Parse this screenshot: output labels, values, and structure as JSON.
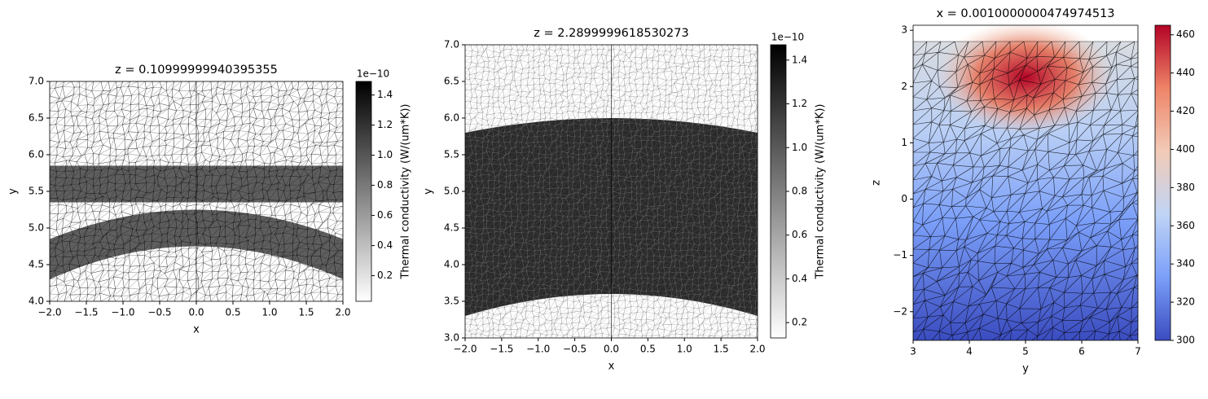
{
  "chart_data": [
    {
      "type": "mesh",
      "title": "z = 0.10999999940395355",
      "xlabel": "x",
      "ylabel": "y",
      "xlim": [
        -2,
        2
      ],
      "ylim": [
        4,
        7
      ],
      "xticks": [
        {
          "value": -2,
          "label": "−2.0"
        },
        {
          "value": -1.5,
          "label": "−1.5"
        },
        {
          "value": -1,
          "label": "−1.0"
        },
        {
          "value": -0.5,
          "label": "−0.5"
        },
        {
          "value": 0,
          "label": "0.0"
        },
        0.5,
        {
          "value": 1,
          "label": "1.0"
        },
        1.5,
        {
          "value": 2,
          "label": "2.0"
        }
      ],
      "yticks": [
        {
          "value": 4,
          "label": "4.0"
        },
        4.5,
        {
          "value": 5,
          "label": "5.0"
        },
        5.5,
        {
          "value": 6,
          "label": "6.0"
        },
        6.5,
        {
          "value": 7,
          "label": "7.0"
        }
      ],
      "colorbar": {
        "label": "Thermal conductivity (W/(um*K))",
        "offset_text": "1e−10",
        "lim": [
          0.03,
          1.49
        ],
        "ticks": [
          0.2,
          0.4,
          0.6,
          0.8,
          {
            "value": 1,
            "label": "1.0"
          },
          1.2,
          1.4
        ],
        "colors": [
          "#ffffff",
          "#000000"
        ]
      }
    },
    {
      "type": "mesh",
      "title": "z = 2.2899999618530273",
      "xlabel": "x",
      "ylabel": "y",
      "xlim": [
        -2,
        2
      ],
      "ylim": [
        3,
        7
      ],
      "xticks": [
        {
          "value": -2,
          "label": "−2.0"
        },
        {
          "value": -1.5,
          "label": "−1.5"
        },
        {
          "value": -1,
          "label": "−1.0"
        },
        {
          "value": -0.5,
          "label": "−0.5"
        },
        {
          "value": 0,
          "label": "0.0"
        },
        0.5,
        {
          "value": 1,
          "label": "1.0"
        },
        1.5,
        {
          "value": 2,
          "label": "2.0"
        }
      ],
      "yticks": [
        {
          "value": 3,
          "label": "3.0"
        },
        3.5,
        {
          "value": 4,
          "label": "4.0"
        },
        4.5,
        {
          "value": 5,
          "label": "5.0"
        },
        5.5,
        {
          "value": 6,
          "label": "6.0"
        },
        6.5,
        {
          "value": 7,
          "label": "7.0"
        }
      ],
      "colorbar": {
        "label": "Thermal conductivity (W/(um*K))",
        "offset_text": "1e−10",
        "lim": [
          0.13,
          1.47
        ],
        "ticks": [
          0.2,
          0.4,
          0.6,
          0.8,
          {
            "value": 1,
            "label": "1.0"
          },
          1.2,
          1.4
        ],
        "colors": [
          "#ffffff",
          "#000000"
        ]
      }
    },
    {
      "type": "mesh",
      "title": "x = 0.0010000000474974513",
      "xlabel": "y",
      "ylabel": "z",
      "xlim": [
        3,
        7
      ],
      "ylim": [
        -2.51,
        3.09
      ],
      "xticks": [
        3,
        4,
        5,
        6,
        7
      ],
      "yticks": [
        {
          "value": -2,
          "label": "−2"
        },
        {
          "value": -1,
          "label": "−1"
        },
        0,
        1,
        2,
        3
      ],
      "colorbar": {
        "lim": [
          300,
          465
        ],
        "ticks": [
          300,
          320,
          340,
          360,
          380,
          400,
          420,
          440,
          460
        ],
        "colors": [
          "#3b4cc0",
          "#7b9ff9",
          "#c0d4f5",
          "#f2cbb7",
          "#ee8468",
          "#b40426"
        ]
      }
    }
  ]
}
